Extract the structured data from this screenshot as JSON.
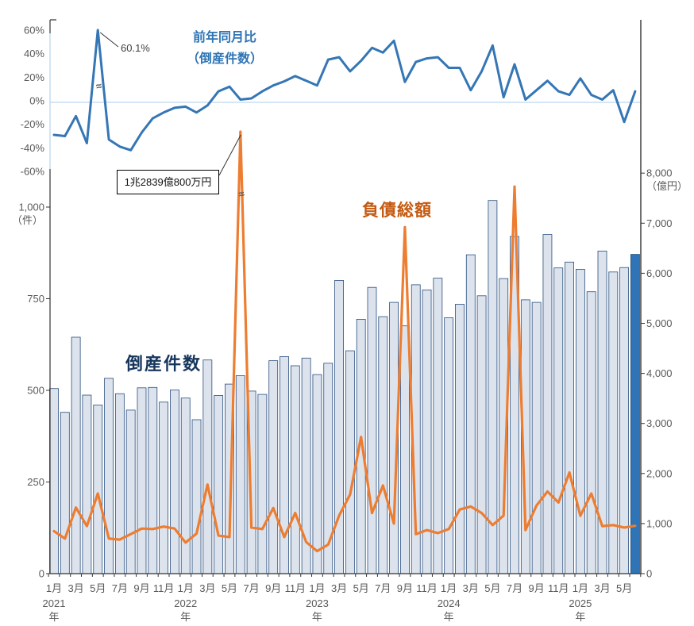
{
  "chart_data": {
    "type": "combo",
    "title": "倒産件数・負債総額・前年同月比",
    "months": [
      "2021-01",
      "2021-02",
      "2021-03",
      "2021-04",
      "2021-05",
      "2021-06",
      "2021-07",
      "2021-08",
      "2021-09",
      "2021-10",
      "2021-11",
      "2021-12",
      "2022-01",
      "2022-02",
      "2022-03",
      "2022-04",
      "2022-05",
      "2022-06",
      "2022-07",
      "2022-08",
      "2022-09",
      "2022-10",
      "2022-11",
      "2022-12",
      "2023-01",
      "2023-02",
      "2023-03",
      "2023-04",
      "2023-05",
      "2023-06",
      "2023-07",
      "2023-08",
      "2023-09",
      "2023-10",
      "2023-11",
      "2023-12",
      "2024-01",
      "2024-02",
      "2024-03",
      "2024-04",
      "2024-05",
      "2024-06",
      "2024-07",
      "2024-08",
      "2024-09",
      "2024-10",
      "2024-11",
      "2024-12",
      "2025-01",
      "2025-02",
      "2025-03",
      "2025-04",
      "2025-05",
      "2025-06"
    ],
    "x_tick_labels": [
      "1月",
      "",
      "3月",
      "",
      "5月",
      "",
      "7月",
      "",
      "9月",
      "",
      "11月",
      "",
      "1月",
      "",
      "3月",
      "",
      "5月",
      "",
      "7月",
      "",
      "9月",
      "",
      "11月",
      "",
      "1月",
      "",
      "3月",
      "",
      "5月",
      "",
      "7月",
      "",
      "9月",
      "",
      "11月",
      "",
      "1月",
      "",
      "3月",
      "",
      "5月",
      "",
      "7月",
      "",
      "9月",
      "",
      "11月",
      "",
      "1月",
      "",
      "3月",
      "",
      "5月",
      ""
    ],
    "year_labels": [
      {
        "month_index": 0,
        "label": "2021",
        "suffix": "年"
      },
      {
        "month_index": 12,
        "label": "2022",
        "suffix": "年"
      },
      {
        "month_index": 24,
        "label": "2023",
        "suffix": "年"
      },
      {
        "month_index": 36,
        "label": "2024",
        "suffix": "年"
      },
      {
        "month_index": 48,
        "label": "2025",
        "suffix": "年"
      }
    ],
    "series": [
      {
        "name": "前年同月比（倒産件数）",
        "type": "line",
        "axis": "percent",
        "unit": "%",
        "color": "#3576B5",
        "values": [
          -29,
          -30,
          -13,
          -36,
          60.1,
          -33,
          -39,
          -42,
          -27,
          -15,
          -10,
          -6,
          -5,
          -10,
          -4,
          8,
          12,
          1,
          2,
          8,
          13,
          16.5,
          21,
          17,
          13,
          35,
          37,
          25,
          34,
          45,
          41,
          51,
          16,
          33,
          36,
          37,
          28,
          28,
          9,
          25,
          47,
          3,
          31,
          1,
          9,
          17,
          8,
          5,
          19,
          5,
          1,
          9,
          -18,
          8
        ]
      },
      {
        "name": "倒産件数",
        "type": "bar",
        "axis": "count",
        "unit": "件",
        "color": "#DCE3ED",
        "border_color": "#2A4E7E",
        "highlight_last": {
          "index": 53,
          "color": "#2E74B6"
        },
        "values": [
          505,
          440,
          645,
          487,
          460,
          533,
          491,
          446,
          507,
          508,
          468,
          501,
          479,
          420,
          583,
          486,
          517,
          540,
          498,
          489,
          581,
          592,
          567,
          588,
          543,
          574,
          800,
          608,
          694,
          781,
          701,
          740,
          676,
          788,
          774,
          806,
          698,
          735,
          870,
          758,
          1018,
          805,
          920,
          747,
          740,
          925,
          834,
          850,
          830,
          769,
          880,
          823,
          835,
          871
        ]
      },
      {
        "name": "負債総額",
        "type": "line",
        "axis": "oku",
        "unit": "億円",
        "color": "#ED7D31",
        "display_cap": {
          "index": 17,
          "display_value": 8828
        },
        "values": [
          850,
          700,
          1320,
          950,
          1600,
          700,
          680,
          790,
          900,
          890,
          940,
          900,
          620,
          800,
          1780,
          760,
          730,
          12839,
          920,
          890,
          1310,
          730,
          1210,
          630,
          450,
          580,
          1160,
          1580,
          2730,
          1210,
          1760,
          1000,
          6920,
          790,
          870,
          810,
          890,
          1280,
          1340,
          1210,
          970,
          1160,
          7730,
          870,
          1360,
          1640,
          1420,
          2020,
          1155,
          1600,
          950,
          970,
          920,
          955
        ]
      }
    ],
    "axes": {
      "percent": {
        "ticks": [
          60,
          40,
          20,
          0,
          -20,
          -40,
          -60
        ],
        "labels": [
          "60%",
          "40%",
          "20%",
          "0%",
          "-20%",
          "-40%",
          "-60%"
        ],
        "position": "left-top"
      },
      "count": {
        "ticks": [
          1000,
          750,
          500,
          250,
          0
        ],
        "labels": [
          "1,000",
          "750",
          "500",
          "250",
          "0"
        ],
        "unit_label": "（件）",
        "position": "left-bottom"
      },
      "oku": {
        "ticks": [
          8000,
          7000,
          6000,
          5000,
          4000,
          3000,
          2000,
          1000,
          0
        ],
        "labels": [
          "8,000",
          "7,000",
          "6,000",
          "5,000",
          "4,000",
          "3,000",
          "2,000",
          "1,000",
          "0"
        ],
        "unit_label": "（億円）",
        "position": "right"
      }
    },
    "annotations": [
      {
        "id": "yoy_peak",
        "text": "60.1%",
        "month_index": 4,
        "value": 60.1
      },
      {
        "id": "liabilities_peak",
        "text": "1兆2839億800万円",
        "month_index": 17,
        "value": 12839.08
      },
      {
        "id": "axis_break_yoy",
        "month_index": 4
      },
      {
        "id": "axis_break_liabilities",
        "month_index": 17
      }
    ],
    "labels": {
      "top_title_line1": "前年同月比",
      "top_title_line2": "（倒産件数）",
      "bar_series_label": "倒産件数",
      "line_series_label": "負債総額"
    },
    "layout_hints": {
      "grid": "off",
      "zero_line_color": "#BDD7EE",
      "ylim_percent": [
        -60,
        60
      ],
      "ylim_count": [
        0,
        1000
      ],
      "ylim_oku": [
        0,
        8000
      ]
    }
  }
}
